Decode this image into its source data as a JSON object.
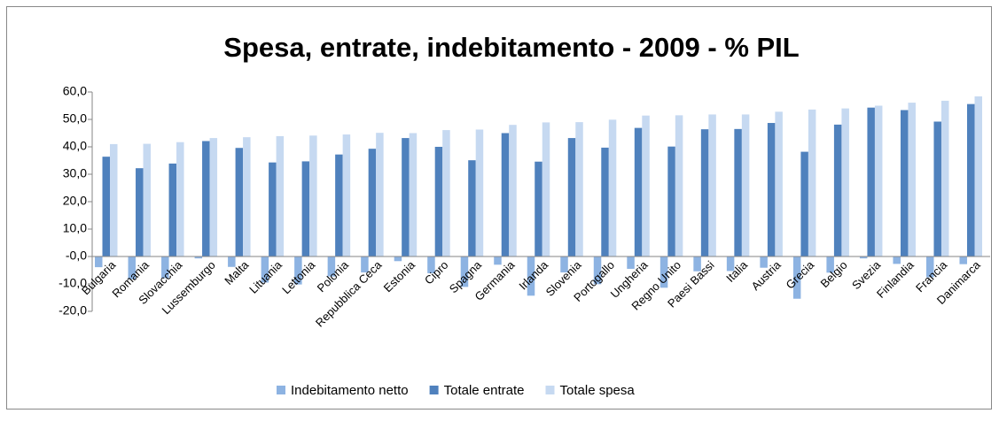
{
  "chart_data": {
    "type": "bar",
    "title": "Spesa, entrate, indebitamento - 2009 - % PIL",
    "categories": [
      "Bulgaria",
      "Romania",
      "Slovacchia",
      "Lussemburgo",
      "Malta",
      "Lituania",
      "Lettonia",
      "Polonia",
      "Repubblica Ceca",
      "Estonia",
      "Cipro",
      "Spagna",
      "Germania",
      "Irlanda",
      "Slovenia",
      "Portogallo",
      "Ungheria",
      "Regno Unito",
      "Paesi Bassi",
      "Italia",
      "Austria",
      "Grecia",
      "Belgio",
      "Svezia",
      "Finlandia",
      "Francia",
      "Danimarca"
    ],
    "series": [
      {
        "name": "Indebitamento netto",
        "color": "#8db3e2",
        "values": [
          -3.9,
          -8.3,
          -7.9,
          -0.7,
          -3.8,
          -9.5,
          -10.2,
          -7.3,
          -5.8,
          -1.7,
          -6.1,
          -11.1,
          -3.0,
          -14.3,
          -5.8,
          -10.1,
          -4.5,
          -11.4,
          -5.4,
          -5.3,
          -4.1,
          -15.4,
          -5.9,
          -0.7,
          -2.7,
          -7.6,
          -2.8
        ]
      },
      {
        "name": "Totale entrate",
        "color": "#4f81bd",
        "values": [
          36.4,
          32.2,
          33.9,
          42.1,
          39.6,
          34.3,
          34.7,
          37.2,
          39.3,
          43.2,
          40.0,
          35.1,
          45.0,
          34.6,
          43.2,
          39.7,
          46.9,
          40.1,
          46.4,
          46.5,
          48.7,
          38.2,
          48.1,
          54.3,
          53.4,
          49.2,
          55.6
        ]
      },
      {
        "name": "Totale spesa",
        "color": "#c6d9f1",
        "values": [
          41.0,
          41.1,
          41.7,
          43.2,
          43.5,
          43.9,
          44.1,
          44.5,
          45.1,
          45.0,
          46.1,
          46.3,
          48.0,
          48.9,
          49.0,
          49.9,
          51.4,
          51.5,
          51.8,
          51.8,
          52.8,
          53.6,
          54.0,
          55.0,
          56.1,
          56.8,
          58.4
        ]
      }
    ],
    "ylim": [
      -20,
      60
    ],
    "yticks": [
      {
        "value": -20,
        "label": "-20,0"
      },
      {
        "value": -10,
        "label": "-10,0"
      },
      {
        "value": 0,
        "label": "-0,0"
      },
      {
        "value": 10,
        "label": "10,0"
      },
      {
        "value": 20,
        "label": "20,0"
      },
      {
        "value": 30,
        "label": "30,0"
      },
      {
        "value": 40,
        "label": "40,0"
      },
      {
        "value": 50,
        "label": "50,0"
      },
      {
        "value": 60,
        "label": "60,0"
      }
    ],
    "grid": false,
    "legend": "bottom"
  }
}
